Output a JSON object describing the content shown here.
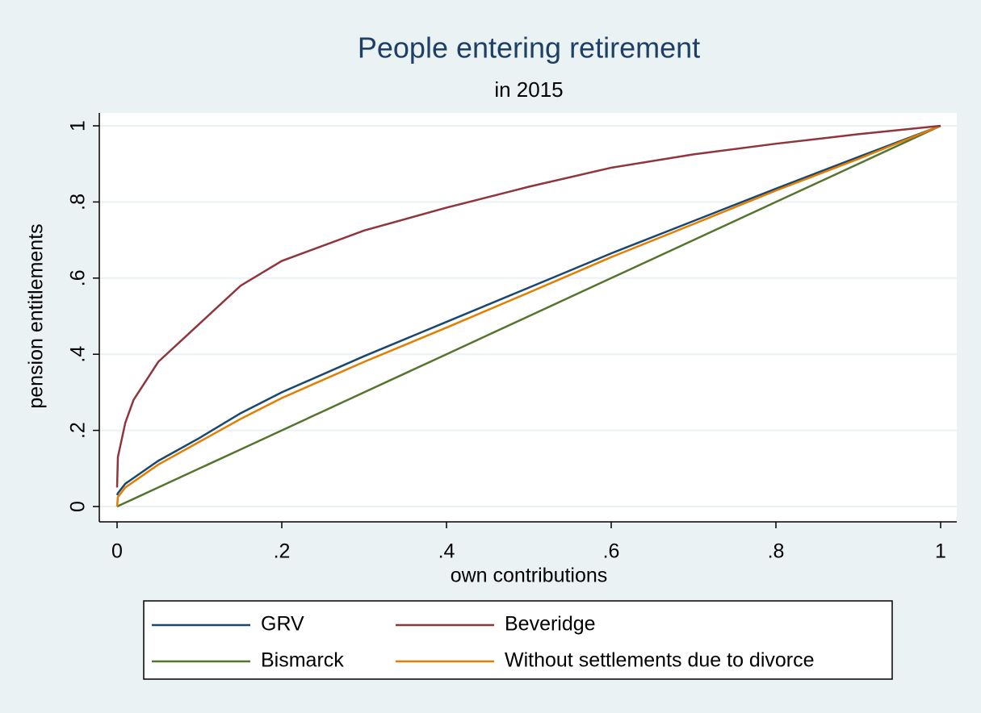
{
  "chart_data": {
    "type": "line",
    "title": "People entering retirement",
    "subtitle": "in 2015",
    "x_label": "own contributions",
    "y_label": "pension entitlements",
    "x": [
      0,
      0.001,
      0.01,
      0.02,
      0.05,
      0.1,
      0.15,
      0.2,
      0.3,
      0.4,
      0.5,
      0.6,
      0.7,
      0.8,
      0.9,
      1
    ],
    "series": [
      {
        "name": "GRV",
        "color": "#1a476f",
        "values": [
          0.03,
          0.035,
          0.06,
          0.075,
          0.12,
          0.18,
          0.245,
          0.3,
          0.395,
          0.485,
          0.575,
          0.665,
          0.75,
          0.835,
          0.918,
          1
        ]
      },
      {
        "name": "Beveridge",
        "color": "#90353b",
        "values": [
          0.05,
          0.13,
          0.22,
          0.28,
          0.38,
          0.48,
          0.58,
          0.645,
          0.725,
          0.785,
          0.84,
          0.89,
          0.925,
          0.953,
          0.978,
          1
        ]
      },
      {
        "name": "Bismarck",
        "color": "#55752f",
        "values": [
          0,
          0.001,
          0.01,
          0.02,
          0.05,
          0.1,
          0.15,
          0.2,
          0.3,
          0.4,
          0.5,
          0.6,
          0.7,
          0.8,
          0.9,
          1
        ]
      },
      {
        "name": "Without settlements due to divorce",
        "color": "#e37e00",
        "values": [
          0,
          0.025,
          0.05,
          0.065,
          0.11,
          0.17,
          0.23,
          0.285,
          0.38,
          0.47,
          0.562,
          0.655,
          0.742,
          0.83,
          0.913,
          1
        ]
      }
    ],
    "xlim": [
      0,
      1
    ],
    "ylim": [
      0,
      1
    ],
    "xticks": [
      0,
      {
        "value": 0.2,
        "label": ".2"
      },
      {
        "value": 0.4,
        "label": ".4"
      },
      {
        "value": 0.6,
        "label": ".6"
      },
      {
        "value": 0.8,
        "label": ".8"
      },
      1
    ],
    "yticks": [
      0,
      {
        "value": 0.2,
        "label": ".2"
      },
      {
        "value": 0.4,
        "label": ".4"
      },
      {
        "value": 0.6,
        "label": ".6"
      },
      {
        "value": 0.8,
        "label": ".8"
      },
      1
    ],
    "grid": true,
    "legend": "bottom"
  }
}
